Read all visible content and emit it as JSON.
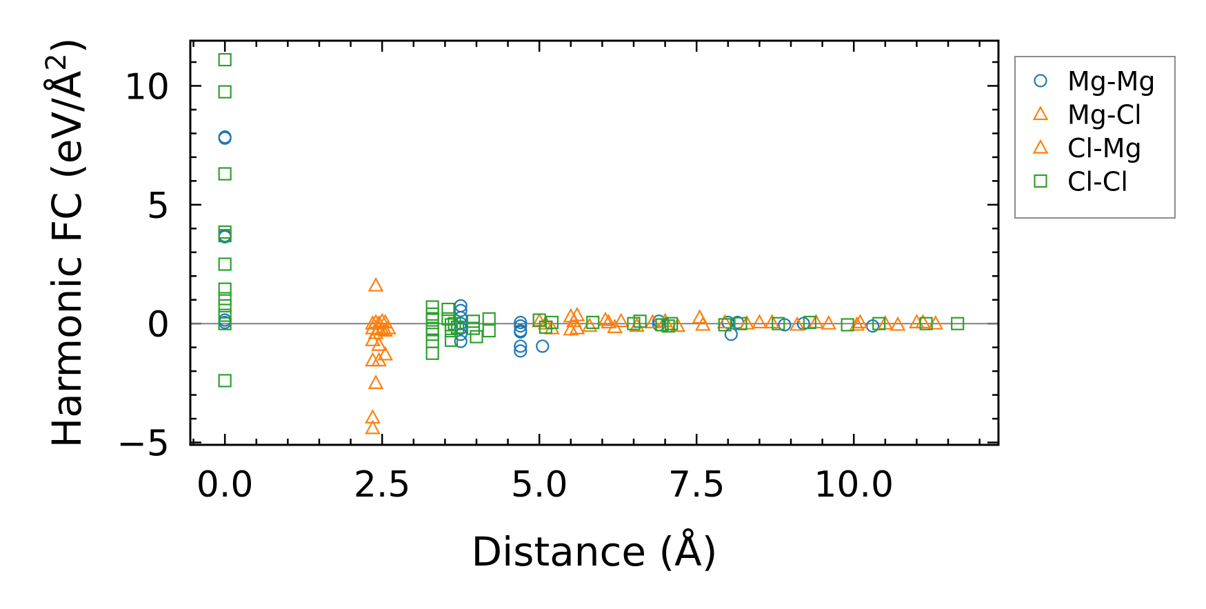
{
  "chart_data": {
    "type": "scatter",
    "title": "",
    "xlabel": "Distance (Å)",
    "ylabel_main": "Harmonic FC (eV/Å",
    "ylabel_sup": "2",
    "ylabel_close": ")",
    "xlim": [
      -0.55,
      12.3
    ],
    "ylim": [
      -5.1,
      11.9
    ],
    "xticks": [
      0.0,
      2.5,
      5.0,
      7.5,
      10.0
    ],
    "xtick_labels": [
      "0.0",
      "2.5",
      "5.0",
      "7.5",
      "10.0"
    ],
    "yticks": [
      -5,
      0,
      5,
      10
    ],
    "ytick_labels": [
      "−5",
      "0",
      "5",
      "10"
    ],
    "zero_line": 0,
    "legend_position": "outside-right",
    "series": [
      {
        "name": "Mg-Mg",
        "marker": "circle",
        "color": "#1f77b4",
        "points": [
          [
            0,
            7.85
          ],
          [
            0,
            7.8
          ],
          [
            0,
            3.7
          ],
          [
            0,
            3.65
          ],
          [
            0,
            0.15
          ],
          [
            0,
            0.05
          ],
          [
            3.75,
            0.75
          ],
          [
            3.75,
            0.55
          ],
          [
            3.75,
            0.25
          ],
          [
            3.75,
            0.0
          ],
          [
            3.75,
            -0.2
          ],
          [
            3.75,
            -0.45
          ],
          [
            3.75,
            -0.75
          ],
          [
            4.7,
            0.05
          ],
          [
            4.7,
            -0.1
          ],
          [
            4.7,
            -0.3
          ],
          [
            4.7,
            -0.35
          ],
          [
            4.7,
            -0.95
          ],
          [
            4.7,
            -1.15
          ],
          [
            5.05,
            -0.95
          ],
          [
            6.9,
            0.1
          ],
          [
            6.9,
            -0.05
          ],
          [
            8.0,
            0.05
          ],
          [
            8.05,
            -0.45
          ],
          [
            8.15,
            0.05
          ],
          [
            8.9,
            -0.05
          ],
          [
            9.2,
            0.0
          ],
          [
            10.3,
            -0.1
          ]
        ]
      },
      {
        "name": "Mg-Cl",
        "marker": "triangle",
        "color": "#ff7f0e",
        "points": [
          [
            2.4,
            1.6
          ],
          [
            2.35,
            0.0
          ],
          [
            2.4,
            0.05
          ],
          [
            2.45,
            0.0
          ],
          [
            2.55,
            0.05
          ],
          [
            2.35,
            -0.2
          ],
          [
            2.45,
            -0.2
          ],
          [
            2.5,
            -0.25
          ],
          [
            2.6,
            -0.2
          ],
          [
            2.4,
            -0.4
          ],
          [
            2.35,
            -0.7
          ],
          [
            2.45,
            -0.9
          ],
          [
            2.55,
            -1.3
          ],
          [
            2.35,
            -1.55
          ],
          [
            2.45,
            -1.55
          ],
          [
            2.4,
            -2.5
          ],
          [
            2.35,
            -3.95
          ],
          [
            2.35,
            -4.4
          ],
          [
            5.0,
            0.1
          ],
          [
            5.2,
            -0.2
          ],
          [
            5.5,
            0.3
          ],
          [
            5.6,
            0.35
          ],
          [
            5.5,
            -0.25
          ],
          [
            5.6,
            -0.2
          ],
          [
            5.8,
            -0.1
          ],
          [
            6.05,
            0.15
          ],
          [
            6.2,
            -0.15
          ],
          [
            6.3,
            0.1
          ],
          [
            6.55,
            -0.1
          ],
          [
            6.8,
            0.05
          ],
          [
            7.2,
            -0.1
          ],
          [
            7.55,
            0.25
          ],
          [
            7.6,
            -0.05
          ],
          [
            8.3,
            0.0
          ],
          [
            8.7,
            0.05
          ],
          [
            9.1,
            -0.05
          ],
          [
            9.6,
            0.0
          ],
          [
            10.05,
            -0.05
          ],
          [
            10.5,
            0.0
          ],
          [
            10.7,
            -0.05
          ],
          [
            11.0,
            0.05
          ],
          [
            11.3,
            0.0
          ]
        ]
      },
      {
        "name": "Cl-Mg",
        "marker": "triangle",
        "color": "#ff7f0e",
        "points": [
          [
            2.5,
            0.1
          ],
          [
            2.55,
            -0.3
          ],
          [
            5.1,
            0.0
          ],
          [
            5.55,
            0.1
          ],
          [
            6.1,
            0.05
          ],
          [
            7.0,
            0.1
          ],
          [
            7.95,
            0.05
          ],
          [
            8.5,
            0.05
          ],
          [
            9.4,
            0.05
          ],
          [
            10.1,
            0.05
          ],
          [
            11.1,
            0.05
          ]
        ]
      },
      {
        "name": "Cl-Cl",
        "marker": "square",
        "color": "#2ca02c",
        "points": [
          [
            0,
            11.1
          ],
          [
            0,
            9.75
          ],
          [
            0,
            6.3
          ],
          [
            0,
            3.85
          ],
          [
            0,
            3.7
          ],
          [
            0,
            2.5
          ],
          [
            0,
            1.45
          ],
          [
            0,
            1.05
          ],
          [
            0,
            0.75
          ],
          [
            0,
            0.35
          ],
          [
            0,
            0.0
          ],
          [
            0,
            -2.4
          ],
          [
            3.3,
            0.7
          ],
          [
            3.3,
            0.4
          ],
          [
            3.3,
            0.15
          ],
          [
            3.3,
            -0.2
          ],
          [
            3.3,
            -0.45
          ],
          [
            3.3,
            -0.75
          ],
          [
            3.3,
            -1.25
          ],
          [
            3.55,
            0.6
          ],
          [
            3.55,
            0.2
          ],
          [
            3.6,
            -0.05
          ],
          [
            3.6,
            -0.3
          ],
          [
            3.6,
            -0.7
          ],
          [
            3.65,
            0.0
          ],
          [
            3.7,
            -0.15
          ],
          [
            3.95,
            0.1
          ],
          [
            3.95,
            -0.2
          ],
          [
            4.0,
            -0.55
          ],
          [
            4.2,
            0.2
          ],
          [
            4.2,
            -0.3
          ],
          [
            5.0,
            0.15
          ],
          [
            5.1,
            -0.15
          ],
          [
            5.2,
            0.05
          ],
          [
            5.85,
            0.05
          ],
          [
            6.5,
            0.0
          ],
          [
            6.6,
            0.1
          ],
          [
            6.95,
            -0.05
          ],
          [
            7.05,
            -0.1
          ],
          [
            7.1,
            0.0
          ],
          [
            7.95,
            -0.05
          ],
          [
            8.2,
            0.0
          ],
          [
            8.8,
            0.0
          ],
          [
            9.3,
            0.05
          ],
          [
            9.9,
            -0.05
          ],
          [
            10.4,
            0.0
          ],
          [
            11.15,
            0.0
          ],
          [
            11.65,
            0.0
          ]
        ]
      }
    ]
  }
}
